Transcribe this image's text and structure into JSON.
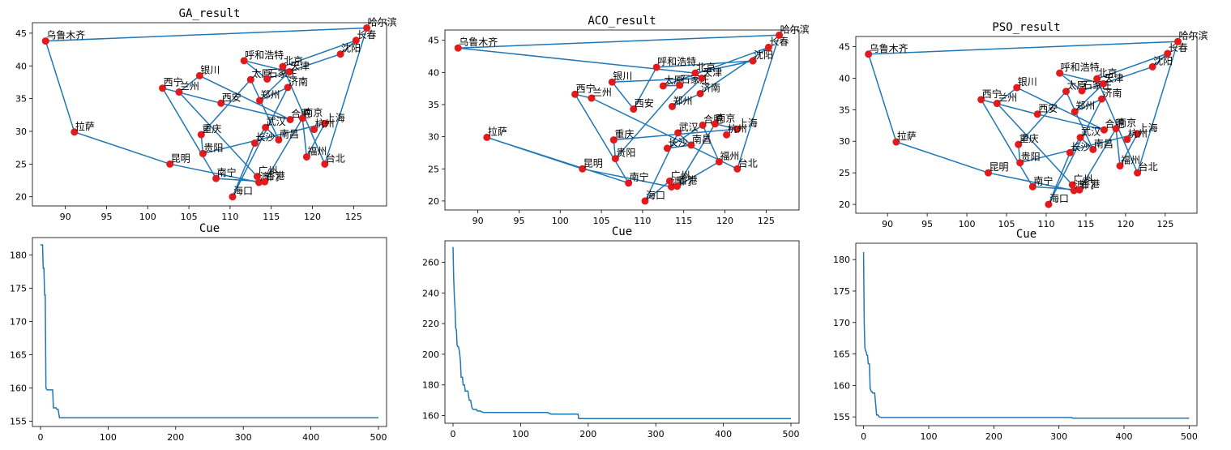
{
  "figure": {
    "background": "#ffffff",
    "line_color": "#1f77b4",
    "point_color": "#e31a1c"
  },
  "chart_data": [
    {
      "type": "scatter",
      "title": "GA_result",
      "xlim": [
        86,
        129
      ],
      "ylim": [
        18.6,
        46.6
      ],
      "xticks": [
        90,
        95,
        100,
        105,
        110,
        115,
        120,
        125
      ],
      "yticks": [
        20,
        25,
        30,
        35,
        40,
        45
      ],
      "route": [
        0,
        10,
        20,
        24,
        23,
        15,
        1,
        18,
        5,
        17,
        19,
        25,
        30,
        26,
        31,
        14,
        11,
        3,
        21,
        13,
        22,
        27,
        12,
        16,
        7,
        2,
        4,
        8,
        9,
        6,
        28,
        29,
        0
      ]
    },
    {
      "type": "scatter",
      "title": "ACO_result",
      "xlim": [
        86,
        129
      ],
      "ylim": [
        18.6,
        46.6
      ],
      "xticks": [
        90,
        95,
        100,
        105,
        110,
        115,
        120,
        125
      ],
      "yticks": [
        20,
        25,
        30,
        35,
        40,
        45
      ],
      "route": [
        0,
        6,
        8,
        2,
        5,
        1,
        7,
        16,
        12,
        9,
        3,
        4,
        14,
        11,
        31,
        30,
        25,
        26,
        18,
        22,
        21,
        13,
        27,
        23,
        24,
        20,
        10,
        19,
        17,
        15,
        28,
        29,
        0
      ]
    },
    {
      "type": "scatter",
      "title": "PSO_result",
      "xlim": [
        86,
        129
      ],
      "ylim": [
        18.6,
        46.6
      ],
      "xticks": [
        90,
        95,
        100,
        105,
        110,
        115,
        120,
        125
      ],
      "yticks": [
        20,
        25,
        30,
        35,
        40,
        45
      ],
      "route": [
        0,
        10,
        20,
        24,
        23,
        15,
        1,
        18,
        5,
        17,
        19,
        25,
        30,
        26,
        31,
        14,
        11,
        3,
        21,
        13,
        22,
        27,
        12,
        16,
        7,
        2,
        4,
        8,
        9,
        6,
        28,
        29,
        0
      ]
    },
    {
      "type": "line",
      "title": "Cue",
      "xlim": [
        -12,
        512
      ],
      "ylim": [
        154.2,
        182.6
      ],
      "xticks": [
        0,
        100,
        200,
        300,
        400,
        500
      ],
      "yticks": [
        155,
        160,
        165,
        170,
        175,
        180
      ],
      "x": [
        0,
        3,
        4,
        5,
        6,
        7,
        8,
        9,
        10,
        18,
        19,
        20,
        23,
        24,
        26,
        28,
        500
      ],
      "y": [
        181.5,
        181.5,
        178,
        178,
        174,
        174,
        160,
        159.8,
        159.7,
        159.7,
        157,
        157,
        157,
        156.8,
        156.8,
        155.5,
        155.5
      ]
    },
    {
      "type": "line",
      "title": "Cue",
      "xlim": [
        -12,
        512
      ],
      "ylim": [
        155,
        274
      ],
      "xticks": [
        0,
        100,
        200,
        300,
        400,
        500
      ],
      "yticks": [
        160,
        180,
        200,
        220,
        240,
        260
      ],
      "x": [
        0,
        1,
        2,
        3,
        4,
        5,
        6,
        7,
        8,
        9,
        10,
        11,
        12,
        14,
        15,
        17,
        18,
        20,
        22,
        24,
        26,
        28,
        30,
        35,
        36,
        40,
        45,
        140,
        145,
        185,
        186,
        500
      ],
      "y": [
        270,
        250,
        237,
        230,
        217,
        216,
        206,
        205,
        205,
        203,
        200,
        195,
        185,
        185,
        180,
        180,
        176,
        176,
        176,
        170,
        170,
        165,
        164,
        164,
        163,
        163,
        162,
        162,
        161,
        161,
        158,
        158
      ]
    },
    {
      "type": "line",
      "title": "Cue",
      "xlim": [
        -12,
        512
      ],
      "ylim": [
        153.6,
        182.6
      ],
      "xticks": [
        0,
        100,
        200,
        300,
        400,
        500
      ],
      "yticks": [
        155,
        160,
        165,
        170,
        175,
        180
      ],
      "x": [
        0,
        1,
        2,
        3,
        4,
        5,
        6,
        7,
        8,
        9,
        10,
        11,
        12,
        13,
        14,
        17,
        20,
        22,
        24,
        27,
        320,
        321,
        500
      ],
      "y": [
        181.2,
        170,
        166,
        165.5,
        165.3,
        164.8,
        164.8,
        163.5,
        163.4,
        163.4,
        159.5,
        159.3,
        159,
        159,
        158.8,
        158.8,
        155.3,
        155.3,
        155,
        154.9,
        154.9,
        154.8,
        154.8
      ]
    }
  ],
  "cities": [
    {
      "name": "乌鲁木齐",
      "x": 87.6,
      "y": 43.8
    },
    {
      "name": "银川",
      "x": 106.3,
      "y": 38.5
    },
    {
      "name": "呼和浩特",
      "x": 111.7,
      "y": 40.8
    },
    {
      "name": "太原",
      "x": 112.5,
      "y": 37.9
    },
    {
      "name": "石家庄",
      "x": 114.5,
      "y": 38.0
    },
    {
      "name": "西安",
      "x": 108.9,
      "y": 34.3
    },
    {
      "name": "北京",
      "x": 116.4,
      "y": 39.9
    },
    {
      "name": "天津",
      "x": 117.2,
      "y": 39.1
    },
    {
      "name": "沈阳",
      "x": 123.4,
      "y": 41.8
    },
    {
      "name": "长春",
      "x": 125.3,
      "y": 43.9
    },
    {
      "name": "拉萨",
      "x": 91.1,
      "y": 29.9
    },
    {
      "name": "重庆",
      "x": 106.5,
      "y": 29.5
    },
    {
      "name": "济南",
      "x": 117.0,
      "y": 36.7
    },
    {
      "name": "武汉",
      "x": 114.3,
      "y": 30.6
    },
    {
      "name": "贵阳",
      "x": 106.7,
      "y": 26.6
    },
    {
      "name": "兰州",
      "x": 103.8,
      "y": 36.0
    },
    {
      "name": "郑州",
      "x": 113.6,
      "y": 34.7
    },
    {
      "name": "西宁",
      "x": 101.8,
      "y": 36.6
    },
    {
      "name": "合肥",
      "x": 117.3,
      "y": 31.8
    },
    {
      "name": "南宁",
      "x": 108.3,
      "y": 22.8
    },
    {
      "name": "昆明",
      "x": 102.7,
      "y": 25.0
    },
    {
      "name": "南昌",
      "x": 115.9,
      "y": 28.7
    },
    {
      "name": "长沙",
      "x": 113.0,
      "y": 28.2
    },
    {
      "name": "广州",
      "x": 113.3,
      "y": 23.1
    },
    {
      "name": "澳门",
      "x": 113.5,
      "y": 22.2
    },
    {
      "name": "香港",
      "x": 114.2,
      "y": 22.3
    },
    {
      "name": "福州",
      "x": 119.3,
      "y": 26.1
    },
    {
      "name": "海口",
      "x": 110.3,
      "y": 20.0
    },
    {
      "name": "台北",
      "x": 121.5,
      "y": 25.0
    },
    {
      "name": "哈尔滨",
      "x": 126.6,
      "y": 45.8
    },
    {
      "name": "南京",
      "x": 118.8,
      "y": 32.0
    },
    {
      "name": "上海",
      "x": 121.5,
      "y": 31.2
    },
    {
      "name": "杭州",
      "x": 120.2,
      "y": 30.3
    }
  ]
}
